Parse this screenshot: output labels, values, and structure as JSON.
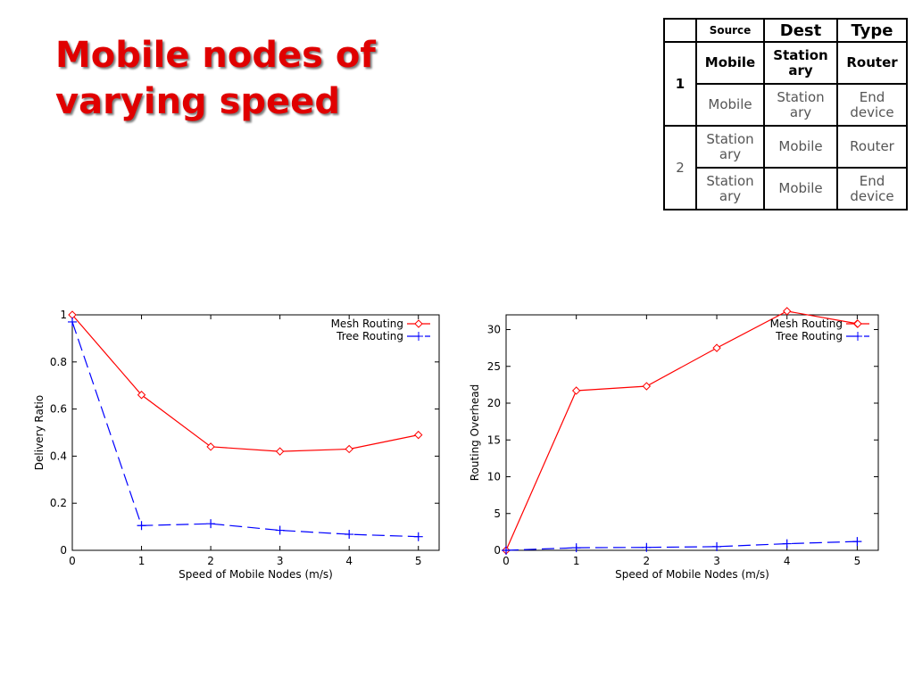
{
  "slide": {
    "title_line1": "Mobile nodes of",
    "title_line2": "varying speed"
  },
  "table": {
    "headers": [
      "",
      "Source",
      "Dest",
      "Type"
    ],
    "groups": [
      {
        "label": "1",
        "rows": [
          [
            "Mobile",
            "Station ary",
            "Router"
          ],
          [
            "Mobile",
            "Station ary",
            "End device"
          ]
        ]
      },
      {
        "label": "2",
        "rows": [
          [
            "Station ary",
            "Mobile",
            "Router"
          ],
          [
            "Station ary",
            "Mobile",
            "End device"
          ]
        ]
      }
    ]
  },
  "chart_data": [
    {
      "type": "line",
      "xlabel": "Speed of Mobile Nodes (m/s)",
      "ylabel": "Delivery Ratio",
      "xlim": [
        0,
        5.3
      ],
      "ylim": [
        0,
        1
      ],
      "xticks": [
        0,
        1,
        2,
        3,
        4,
        5
      ],
      "yticks": [
        0,
        0.2,
        0.4,
        0.6,
        0.8,
        1
      ],
      "ytick_labels": [
        "0",
        "0.2",
        "0.4",
        "0.6",
        "0.8",
        "1"
      ],
      "legend": "top-right",
      "series": [
        {
          "name": "Mesh Routing",
          "color": "#ff0000",
          "marker": "diamond",
          "dash": "solid",
          "x": [
            0,
            1,
            2,
            3,
            4,
            5
          ],
          "y": [
            1.0,
            0.66,
            0.44,
            0.42,
            0.43,
            0.49
          ]
        },
        {
          "name": "Tree Routing",
          "color": "#0000ff",
          "marker": "plus",
          "dash": "dashed",
          "x": [
            0,
            1,
            2,
            3,
            4,
            5
          ],
          "y": [
            0.97,
            0.105,
            0.113,
            0.085,
            0.068,
            0.058
          ]
        }
      ]
    },
    {
      "type": "line",
      "xlabel": "Speed of Mobile Nodes (m/s)",
      "ylabel": "Routing Overhead",
      "xlim": [
        0,
        5.3
      ],
      "ylim": [
        0,
        32
      ],
      "xticks": [
        0,
        1,
        2,
        3,
        4,
        5
      ],
      "yticks": [
        0,
        5,
        10,
        15,
        20,
        25,
        30
      ],
      "ytick_labels": [
        "0",
        "5",
        "10",
        "15",
        "20",
        "25",
        "30"
      ],
      "legend": "top-right",
      "series": [
        {
          "name": "Mesh Routing",
          "color": "#ff0000",
          "marker": "diamond",
          "dash": "solid",
          "x": [
            0,
            1,
            2,
            3,
            4,
            5
          ],
          "y": [
            0,
            21.7,
            22.3,
            27.5,
            32.5,
            30.8
          ]
        },
        {
          "name": "Tree Routing",
          "color": "#0000ff",
          "marker": "plus",
          "dash": "dashed",
          "x": [
            0,
            1,
            2,
            3,
            4,
            5
          ],
          "y": [
            0,
            0.35,
            0.4,
            0.5,
            0.9,
            1.2
          ]
        }
      ]
    }
  ]
}
